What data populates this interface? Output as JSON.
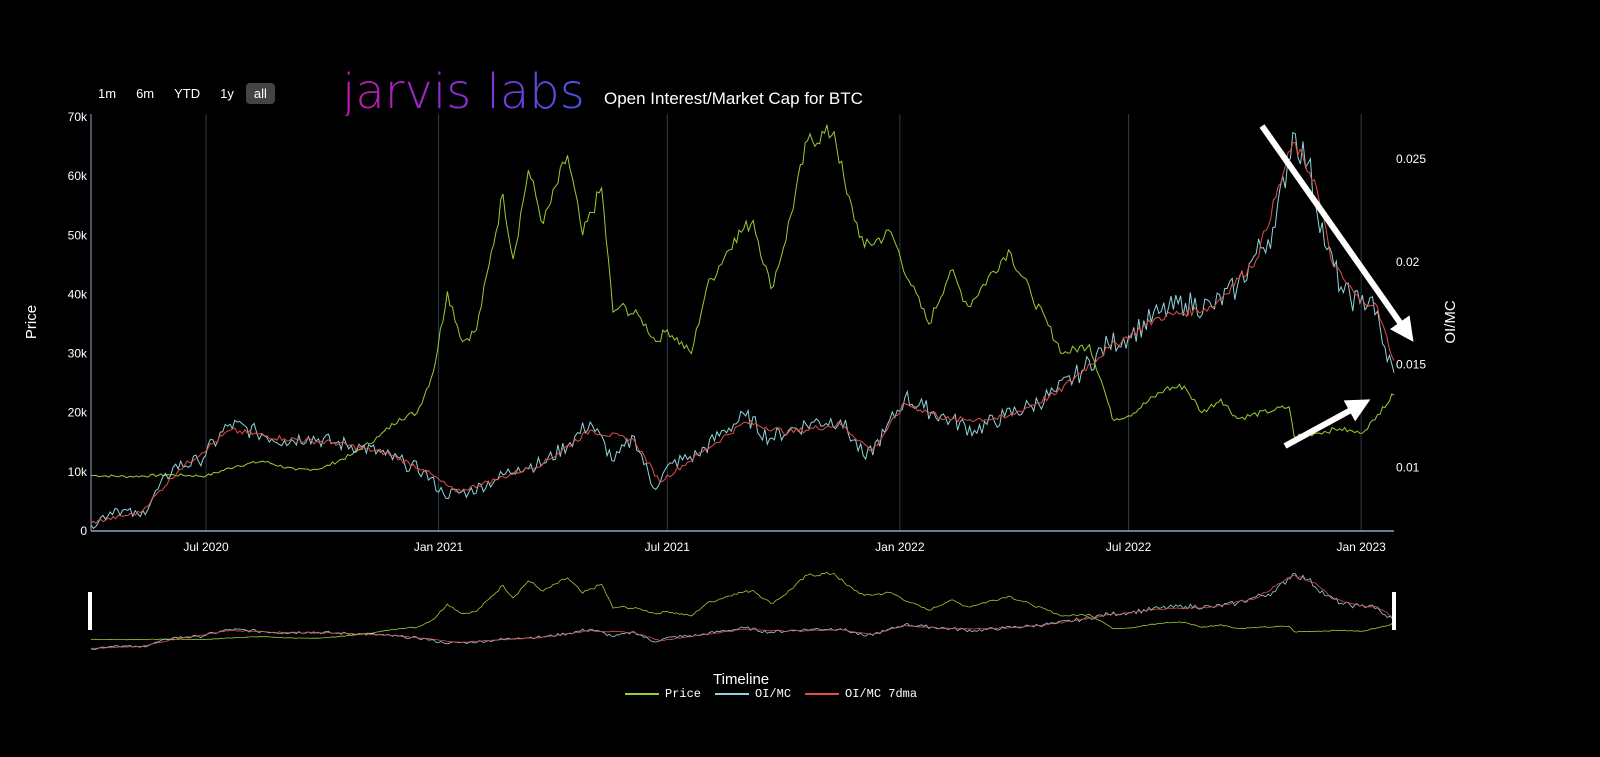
{
  "range_selector": {
    "buttons": [
      "1m",
      "6m",
      "YTD",
      "1y",
      "all"
    ],
    "active": "all"
  },
  "logo_text": "jarvis labs",
  "chart_title": "Open Interest/Market Cap for BTC",
  "colors": {
    "price": "#9acd32",
    "oimc": "#8fd3dc",
    "oimc7": "#e0504a",
    "grid": "#2f3b4c",
    "axis": "#8fa6c8",
    "annotation": "#ffffff"
  },
  "chart_data": {
    "type": "line",
    "xlabel": "",
    "ylabel_left": "Price",
    "ylabel_right": "OI/MC",
    "x_range": [
      "2020-04-01",
      "2023-01-27"
    ],
    "x_ticks": [
      {
        "date": "2020-07-01",
        "label": "Jul 2020"
      },
      {
        "date": "2021-01-01",
        "label": "Jan 2021"
      },
      {
        "date": "2021-07-01",
        "label": "Jul 2021"
      },
      {
        "date": "2022-01-01",
        "label": "Jan 2022"
      },
      {
        "date": "2022-07-01",
        "label": "Jul 2022"
      },
      {
        "date": "2023-01-01",
        "label": "Jan 2023"
      }
    ],
    "y_left_range": [
      0,
      70500
    ],
    "y_left_ticks": [
      {
        "value": 0,
        "label": "0"
      },
      {
        "value": 10000,
        "label": "10k"
      },
      {
        "value": 20000,
        "label": "20k"
      },
      {
        "value": 30000,
        "label": "30k"
      },
      {
        "value": 40000,
        "label": "40k"
      },
      {
        "value": 50000,
        "label": "50k"
      },
      {
        "value": 60000,
        "label": "60k"
      },
      {
        "value": 70000,
        "label": "70k"
      }
    ],
    "y_right_range": [
      0.0069,
      0.0272
    ],
    "y_right_ticks": [
      {
        "value": 0.01,
        "label": "0.01"
      },
      {
        "value": 0.015,
        "label": "0.015"
      },
      {
        "value": 0.02,
        "label": "0.02"
      },
      {
        "value": 0.025,
        "label": "0.025"
      }
    ],
    "series": [
      {
        "name": "Price",
        "axis": "left",
        "points": [
          [
            "2020-04-01",
            9400
          ],
          [
            "2020-05-01",
            9200
          ],
          [
            "2020-06-01",
            9500
          ],
          [
            "2020-07-01",
            9300
          ],
          [
            "2020-07-25",
            11000
          ],
          [
            "2020-08-15",
            11800
          ],
          [
            "2020-09-10",
            10300
          ],
          [
            "2020-10-01",
            10600
          ],
          [
            "2020-10-25",
            13000
          ],
          [
            "2020-11-15",
            16000
          ],
          [
            "2020-12-01",
            19000
          ],
          [
            "2020-12-15",
            20000
          ],
          [
            "2020-12-28",
            27000
          ],
          [
            "2021-01-08",
            40500
          ],
          [
            "2021-01-20",
            32000
          ],
          [
            "2021-01-31",
            34000
          ],
          [
            "2021-02-10",
            45000
          ],
          [
            "2021-02-21",
            57000
          ],
          [
            "2021-03-01",
            46000
          ],
          [
            "2021-03-13",
            61000
          ],
          [
            "2021-03-25",
            52000
          ],
          [
            "2021-04-13",
            63500
          ],
          [
            "2021-04-25",
            50000
          ],
          [
            "2021-05-10",
            58000
          ],
          [
            "2021-05-19",
            37000
          ],
          [
            "2021-05-25",
            38000
          ],
          [
            "2021-06-10",
            36000
          ],
          [
            "2021-06-22",
            32000
          ],
          [
            "2021-07-01",
            34000
          ],
          [
            "2021-07-20",
            30000
          ],
          [
            "2021-08-01",
            41000
          ],
          [
            "2021-08-23",
            49500
          ],
          [
            "2021-09-07",
            52500
          ],
          [
            "2021-09-21",
            41000
          ],
          [
            "2021-10-01",
            48000
          ],
          [
            "2021-10-20",
            66000
          ],
          [
            "2021-11-10",
            67500
          ],
          [
            "2021-11-20",
            57000
          ],
          [
            "2021-12-04",
            48000
          ],
          [
            "2021-12-25",
            50500
          ],
          [
            "2022-01-10",
            41500
          ],
          [
            "2022-01-24",
            35000
          ],
          [
            "2022-02-10",
            44000
          ],
          [
            "2022-02-24",
            38000
          ],
          [
            "2022-03-28",
            47500
          ],
          [
            "2022-04-15",
            40000
          ],
          [
            "2022-05-10",
            30000
          ],
          [
            "2022-05-31",
            31500
          ],
          [
            "2022-06-13",
            23000
          ],
          [
            "2022-06-18",
            19000
          ],
          [
            "2022-07-01",
            19500
          ],
          [
            "2022-07-30",
            24000
          ],
          [
            "2022-08-14",
            24500
          ],
          [
            "2022-08-28",
            20000
          ],
          [
            "2022-09-12",
            22300
          ],
          [
            "2022-09-25",
            19000
          ],
          [
            "2022-10-25",
            20500
          ],
          [
            "2022-11-05",
            21000
          ],
          [
            "2022-11-09",
            16000
          ],
          [
            "2022-11-25",
            16500
          ],
          [
            "2022-12-15",
            17300
          ],
          [
            "2022-12-31",
            16500
          ],
          [
            "2023-01-12",
            18800
          ],
          [
            "2023-01-18",
            21000
          ],
          [
            "2023-01-27",
            23000
          ]
        ]
      },
      {
        "name": "OI/MC",
        "axis": "right",
        "points": [
          [
            "2020-04-01",
            0.0072
          ],
          [
            "2020-04-20",
            0.008
          ],
          [
            "2020-05-10",
            0.0076
          ],
          [
            "2020-06-05",
            0.01
          ],
          [
            "2020-06-25",
            0.0103
          ],
          [
            "2020-07-20",
            0.0121
          ],
          [
            "2020-08-10",
            0.0117
          ],
          [
            "2020-09-01",
            0.0113
          ],
          [
            "2020-09-20",
            0.0115
          ],
          [
            "2020-10-10",
            0.0112
          ],
          [
            "2020-11-01",
            0.011
          ],
          [
            "2020-11-20",
            0.0106
          ],
          [
            "2020-12-05",
            0.0102
          ],
          [
            "2020-12-20",
            0.0098
          ],
          [
            "2021-01-05",
            0.0087
          ],
          [
            "2021-01-25",
            0.0088
          ],
          [
            "2021-02-15",
            0.0094
          ],
          [
            "2021-03-05",
            0.01
          ],
          [
            "2021-03-25",
            0.0102
          ],
          [
            "2021-04-15",
            0.0112
          ],
          [
            "2021-05-01",
            0.0122
          ],
          [
            "2021-05-20",
            0.0103
          ],
          [
            "2021-06-05",
            0.0115
          ],
          [
            "2021-06-20",
            0.009
          ],
          [
            "2021-07-05",
            0.0102
          ],
          [
            "2021-07-25",
            0.0106
          ],
          [
            "2021-08-15",
            0.0118
          ],
          [
            "2021-09-01",
            0.0125
          ],
          [
            "2021-09-20",
            0.0114
          ],
          [
            "2021-10-05",
            0.0118
          ],
          [
            "2021-10-25",
            0.0122
          ],
          [
            "2021-11-15",
            0.0123
          ],
          [
            "2021-12-05",
            0.0104
          ],
          [
            "2021-12-20",
            0.0117
          ],
          [
            "2022-01-05",
            0.0134
          ],
          [
            "2022-01-20",
            0.0129
          ],
          [
            "2022-02-10",
            0.0123
          ],
          [
            "2022-03-01",
            0.0118
          ],
          [
            "2022-03-25",
            0.0125
          ],
          [
            "2022-04-15",
            0.013
          ],
          [
            "2022-05-05",
            0.0137
          ],
          [
            "2022-05-25",
            0.0147
          ],
          [
            "2022-06-15",
            0.016
          ],
          [
            "2022-07-01",
            0.0164
          ],
          [
            "2022-07-25",
            0.0175
          ],
          [
            "2022-08-15",
            0.018
          ],
          [
            "2022-09-05",
            0.0178
          ],
          [
            "2022-09-25",
            0.0188
          ],
          [
            "2022-10-10",
            0.0204
          ],
          [
            "2022-10-25",
            0.0217
          ],
          [
            "2022-11-08",
            0.0263
          ],
          [
            "2022-11-20",
            0.0248
          ],
          [
            "2022-12-05",
            0.0206
          ],
          [
            "2022-12-18",
            0.0185
          ],
          [
            "2022-12-31",
            0.018
          ],
          [
            "2023-01-10",
            0.0183
          ],
          [
            "2023-01-18",
            0.016
          ],
          [
            "2023-01-27",
            0.0146
          ]
        ]
      },
      {
        "name": "OI/MC 7dma",
        "axis": "right",
        "points": [
          [
            "2020-04-01",
            0.0073
          ],
          [
            "2020-05-10",
            0.0078
          ],
          [
            "2020-06-10",
            0.0099
          ],
          [
            "2020-07-20",
            0.0118
          ],
          [
            "2020-09-01",
            0.0114
          ],
          [
            "2020-10-10",
            0.0112
          ],
          [
            "2020-11-20",
            0.0107
          ],
          [
            "2020-12-20",
            0.0099
          ],
          [
            "2021-01-15",
            0.0088
          ],
          [
            "2021-02-15",
            0.0094
          ],
          [
            "2021-03-25",
            0.0102
          ],
          [
            "2021-05-01",
            0.0118
          ],
          [
            "2021-06-05",
            0.0113
          ],
          [
            "2021-06-25",
            0.0093
          ],
          [
            "2021-07-25",
            0.0106
          ],
          [
            "2021-09-01",
            0.0122
          ],
          [
            "2021-10-05",
            0.0117
          ],
          [
            "2021-11-15",
            0.0121
          ],
          [
            "2021-12-10",
            0.0108
          ],
          [
            "2022-01-05",
            0.0131
          ],
          [
            "2022-02-10",
            0.0123
          ],
          [
            "2022-03-25",
            0.0124
          ],
          [
            "2022-05-05",
            0.0136
          ],
          [
            "2022-06-15",
            0.0158
          ],
          [
            "2022-07-25",
            0.0173
          ],
          [
            "2022-09-05",
            0.0178
          ],
          [
            "2022-10-10",
            0.0201
          ],
          [
            "2022-11-08",
            0.0258
          ],
          [
            "2022-11-25",
            0.024
          ],
          [
            "2022-12-10",
            0.0198
          ],
          [
            "2022-12-31",
            0.0181
          ],
          [
            "2023-01-12",
            0.018
          ],
          [
            "2023-01-27",
            0.0152
          ]
        ]
      }
    ],
    "annotations": [
      {
        "type": "arrow",
        "direction": "down-right",
        "description": "falling OI/MC"
      },
      {
        "type": "arrow",
        "direction": "up-right",
        "description": "rising price"
      }
    ]
  },
  "rangeslider": {
    "label": "Timeline"
  },
  "legend": [
    {
      "label": "Price",
      "color": "#9acd32"
    },
    {
      "label": "OI/MC",
      "color": "#8fd3dc"
    },
    {
      "label": "OI/MC 7dma",
      "color": "#e0504a"
    }
  ]
}
